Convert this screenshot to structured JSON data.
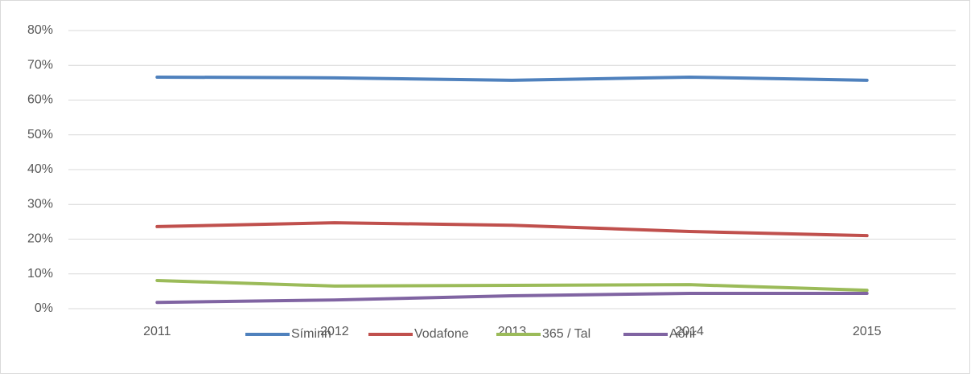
{
  "chart_data": {
    "type": "line",
    "categories": [
      "2011",
      "2012",
      "2013",
      "2014",
      "2015"
    ],
    "series": [
      {
        "name": "Síminn",
        "color": "#4f81bd",
        "values": [
          66.6,
          66.4,
          65.7,
          66.6,
          65.7
        ]
      },
      {
        "name": "Vodafone",
        "color": "#c0504d",
        "values": [
          23.6,
          24.7,
          24.0,
          22.2,
          21.0
        ]
      },
      {
        "name": "365 / Tal",
        "color": "#9bbb59",
        "values": [
          8.1,
          6.5,
          6.7,
          6.9,
          5.3
        ]
      },
      {
        "name": "Aðrir",
        "color": "#8064a2",
        "values": [
          1.8,
          2.5,
          3.7,
          4.4,
          4.4
        ]
      }
    ],
    "ylim": [
      0,
      80
    ],
    "yticks": [
      {
        "value": 0,
        "label": "0%"
      },
      {
        "value": 10,
        "label": "10%"
      },
      {
        "value": 20,
        "label": "20%"
      },
      {
        "value": 30,
        "label": "30%"
      },
      {
        "value": 40,
        "label": "40%"
      },
      {
        "value": 50,
        "label": "50%"
      },
      {
        "value": 60,
        "label": "60%"
      },
      {
        "value": 70,
        "label": "70%"
      },
      {
        "value": 80,
        "label": "80%"
      }
    ],
    "grid": true,
    "legend": "bottom"
  }
}
